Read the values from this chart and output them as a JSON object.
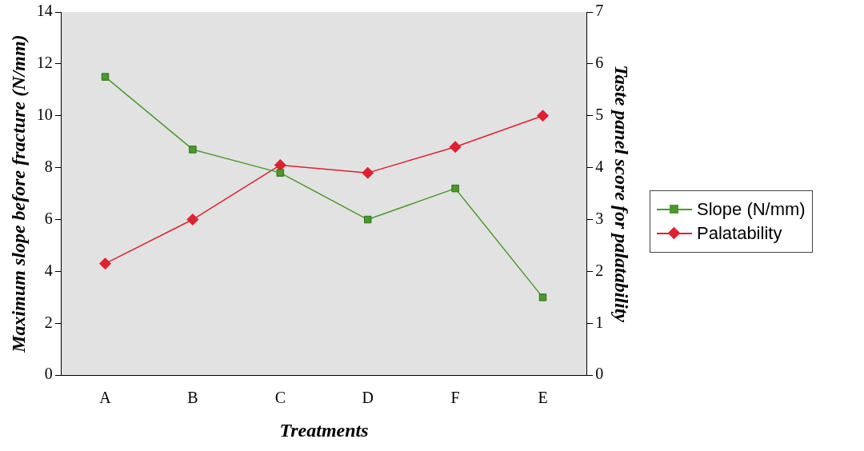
{
  "chart_data": {
    "type": "line",
    "xlabel": "Treatments",
    "ylabel": "Maximum slope before fracture (N/mm)",
    "y2label": "Taste panel score for palatability",
    "categories": [
      "A",
      "B",
      "C",
      "D",
      "F",
      "E"
    ],
    "series": [
      {
        "name": "Slope (N/mm)",
        "color": "#4a9a2a",
        "marker": "square",
        "values": [
          11.5,
          8.7,
          7.8,
          6.0,
          7.2,
          3.0
        ]
      },
      {
        "name": "Palatability",
        "color": "#e0202e",
        "marker": "diamond",
        "axis": "y2",
        "values": [
          2.15,
          3.0,
          4.05,
          3.9,
          4.4,
          5.0
        ]
      }
    ],
    "ylim": [
      0,
      14
    ],
    "yticks": [
      0,
      2,
      4,
      6,
      8,
      10,
      12,
      14
    ],
    "y2lim": [
      0,
      7
    ],
    "y2ticks": [
      0,
      1,
      2,
      3,
      4,
      5,
      6,
      7
    ],
    "grid": false,
    "legend": "right",
    "line_style": "solid"
  }
}
